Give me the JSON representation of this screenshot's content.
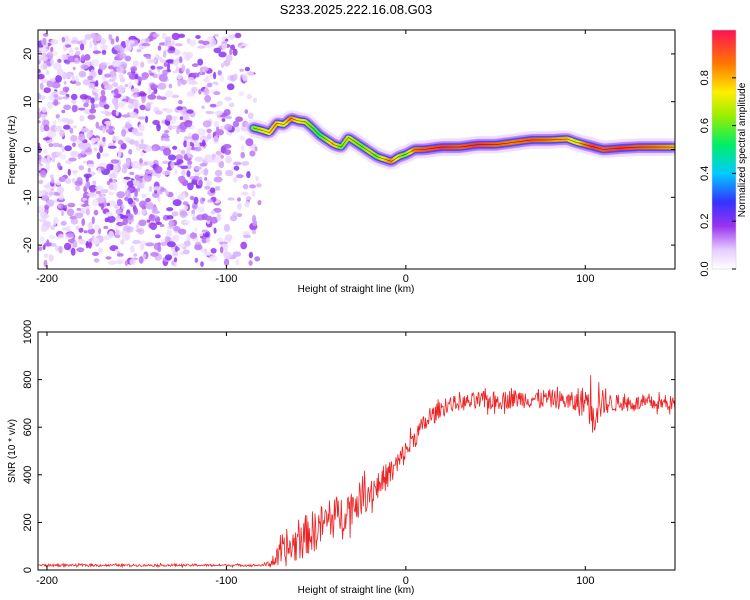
{
  "title": "S233.2025.222.16.08.G03",
  "chart_data": [
    {
      "type": "heatmap",
      "name": "spectrogram",
      "xlabel": "Height of straight line (km)",
      "ylabel": "Frequency (Hz)",
      "xlim": [
        -205,
        150
      ],
      "ylim": [
        -25,
        25
      ],
      "xticks": [
        -200,
        -100,
        0,
        100
      ],
      "yticks": [
        20,
        10,
        0,
        -10,
        -20
      ],
      "noise_region": {
        "x_from": -205,
        "x_to": -80,
        "y_from": -24,
        "y_to": 24
      },
      "ridge": {
        "x": [
          -85,
          -80,
          -76,
          -72,
          -68,
          -64,
          -60,
          -56,
          -52,
          -48,
          -44,
          -40,
          -36,
          -32,
          -28,
          -24,
          -20,
          -16,
          -12,
          -8,
          -4,
          0,
          5,
          10,
          20,
          30,
          40,
          50,
          60,
          70,
          80,
          90,
          95,
          100,
          105,
          110,
          120,
          130,
          140,
          150
        ],
        "y": [
          4.5,
          4.0,
          3.5,
          5.5,
          5.2,
          6.5,
          6.0,
          5.8,
          4.5,
          3.0,
          2.0,
          1.0,
          0.5,
          2.5,
          1.5,
          0.5,
          -0.5,
          -1.5,
          -2.0,
          -2.5,
          -1.5,
          -1.0,
          0.0,
          0.0,
          0.5,
          0.5,
          1.0,
          1.0,
          1.5,
          2.0,
          2.0,
          2.2,
          1.5,
          1.0,
          0.5,
          0.0,
          0.3,
          0.5,
          0.5,
          0.5
        ],
        "amplitude": [
          0.6,
          0.7,
          0.75,
          0.8,
          0.7,
          0.85,
          0.75,
          0.7,
          0.6,
          0.55,
          0.65,
          0.8,
          0.6,
          0.7,
          0.65,
          0.6,
          0.7,
          0.6,
          0.75,
          0.85,
          0.7,
          0.6,
          0.85,
          0.9,
          0.95,
          0.9,
          0.95,
          0.9,
          0.85,
          0.9,
          0.85,
          0.8,
          0.7,
          0.85,
          0.95,
          0.9,
          0.95,
          0.9,
          0.85,
          0.8
        ]
      },
      "colorbar": {
        "label": "Normalized spectral amplitude",
        "range": [
          0,
          1
        ],
        "ticks": [
          "0.0",
          "0.2",
          "0.4",
          "0.6",
          "0.8"
        ]
      }
    },
    {
      "type": "line",
      "name": "snr",
      "xlabel": "Height of straight line (km)",
      "ylabel": "SNR (10 * v/v)",
      "xlim": [
        -205,
        150
      ],
      "ylim": [
        0,
        1000
      ],
      "xticks": [
        -200,
        -100,
        0,
        100
      ],
      "yticks": [
        0,
        200,
        400,
        600,
        800,
        1000
      ],
      "color": "#ee2222",
      "series": [
        {
          "name": "SNR",
          "x": [
            -205,
            -150,
            -100,
            -80,
            -75,
            -70,
            -65,
            -60,
            -55,
            -50,
            -45,
            -40,
            -35,
            -30,
            -25,
            -20,
            -15,
            -10,
            -5,
            0,
            5,
            10,
            15,
            20,
            25,
            30,
            40,
            50,
            60,
            70,
            80,
            90,
            95,
            100,
            103,
            105,
            107,
            110,
            120,
            130,
            140,
            150
          ],
          "mean": [
            20,
            20,
            20,
            20,
            30,
            60,
            90,
            120,
            150,
            170,
            200,
            220,
            240,
            270,
            300,
            330,
            360,
            400,
            440,
            500,
            560,
            610,
            650,
            680,
            700,
            700,
            710,
            710,
            720,
            720,
            720,
            710,
            700,
            710,
            720,
            720,
            720,
            700,
            700,
            700,
            700,
            700
          ],
          "spread": [
            6,
            6,
            6,
            6,
            20,
            70,
            90,
            110,
            110,
            110,
            110,
            110,
            100,
            100,
            90,
            90,
            80,
            70,
            70,
            60,
            60,
            50,
            50,
            40,
            40,
            40,
            50,
            50,
            50,
            50,
            50,
            50,
            60,
            90,
            150,
            250,
            150,
            60,
            40,
            40,
            40,
            40
          ]
        }
      ]
    }
  ]
}
